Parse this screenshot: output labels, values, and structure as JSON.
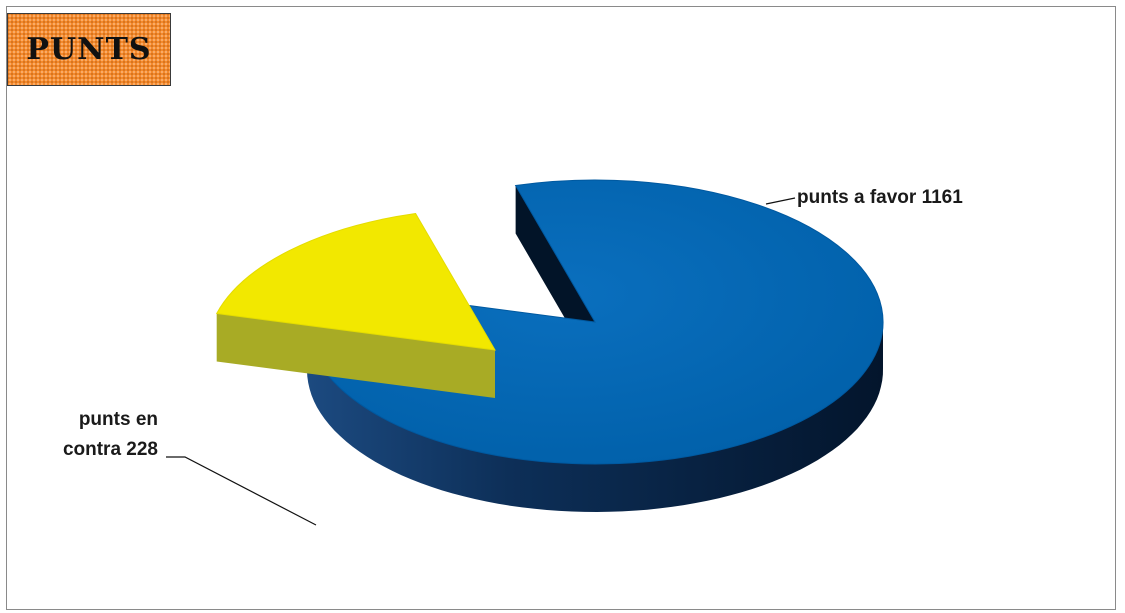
{
  "title": "PUNTS",
  "chart_data": {
    "type": "pie",
    "style": "3d-exploded",
    "slices": [
      {
        "name": "punts a favor",
        "value": 1161,
        "label_lines": [
          "punts a favor 1161"
        ],
        "color": "#0066b3",
        "side_color": "#0a2748"
      },
      {
        "name": "punts en contra",
        "value": 228,
        "label_lines": [
          "punts en",
          "contra 228"
        ],
        "color": "#f2e800",
        "side_color": "#b9bd2c"
      }
    ],
    "legend": "none"
  }
}
